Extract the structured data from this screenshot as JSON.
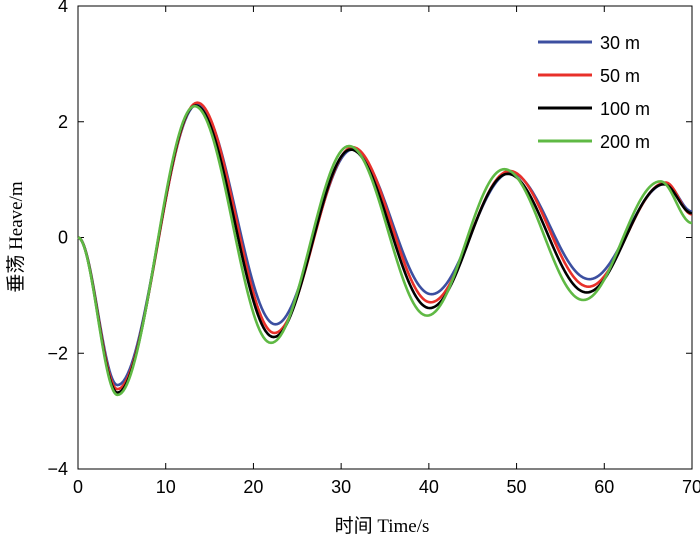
{
  "chart_data": {
    "type": "line",
    "xlabel": "时间 Time/s",
    "ylabel": "垂荡 Heave/m",
    "xlim": [
      0,
      70
    ],
    "ylim": [
      -4,
      4
    ],
    "xticks": [
      0,
      10,
      20,
      30,
      40,
      50,
      60,
      70
    ],
    "yticks": [
      -4,
      -2,
      0,
      2,
      4
    ],
    "grid": false,
    "legend_position": "top-right",
    "series": [
      {
        "name": "30 m",
        "color": "#3c4fa0",
        "points": [
          [
            0,
            0
          ],
          [
            4.5,
            -2.55
          ],
          [
            13.6,
            2.3
          ],
          [
            22.5,
            -1.5
          ],
          [
            31.3,
            1.52
          ],
          [
            40.3,
            -0.98
          ],
          [
            49.3,
            1.12
          ],
          [
            58.3,
            -0.72
          ],
          [
            67,
            0.93
          ],
          [
            70,
            0.45
          ]
        ]
      },
      {
        "name": "50 m",
        "color": "#e8302a",
        "points": [
          [
            0,
            0
          ],
          [
            4.5,
            -2.62
          ],
          [
            13.6,
            2.33
          ],
          [
            22.4,
            -1.65
          ],
          [
            31.3,
            1.56
          ],
          [
            40.2,
            -1.12
          ],
          [
            49.2,
            1.15
          ],
          [
            58.2,
            -0.85
          ],
          [
            67,
            0.95
          ],
          [
            70,
            0.4
          ]
        ]
      },
      {
        "name": "100 m",
        "color": "#000000",
        "points": [
          [
            0,
            0
          ],
          [
            4.5,
            -2.68
          ],
          [
            13.4,
            2.28
          ],
          [
            22.3,
            -1.72
          ],
          [
            31.1,
            1.52
          ],
          [
            40.1,
            -1.22
          ],
          [
            49.0,
            1.1
          ],
          [
            58.0,
            -0.95
          ],
          [
            66.8,
            0.92
          ],
          [
            70,
            0.42
          ]
        ]
      },
      {
        "name": "200 m",
        "color": "#5fb944",
        "points": [
          [
            0,
            0
          ],
          [
            4.5,
            -2.72
          ],
          [
            13.3,
            2.27
          ],
          [
            22.0,
            -1.82
          ],
          [
            30.9,
            1.58
          ],
          [
            39.8,
            -1.35
          ],
          [
            48.6,
            1.18
          ],
          [
            57.6,
            -1.08
          ],
          [
            66.4,
            0.97
          ],
          [
            70,
            0.25
          ]
        ]
      }
    ]
  }
}
